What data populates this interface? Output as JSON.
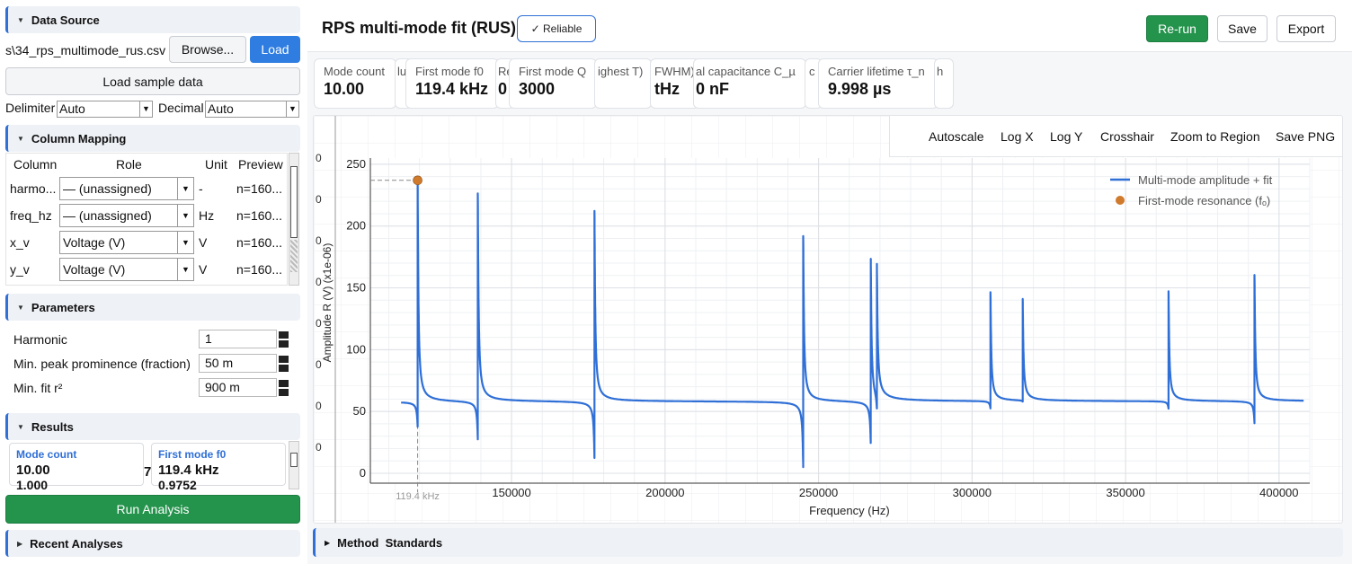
{
  "sidebar": {
    "data_source": {
      "header": "Data Source",
      "file_path": "s\\34_rps_multimode_rus.csv",
      "browse_label": "Browse...",
      "load_label": "Load",
      "load_sample_label": "Load sample data",
      "delimiter_label": "Delimiter",
      "delimiter_value": "Auto",
      "decimal_label": "Decimal",
      "decimal_value": "Auto"
    },
    "column_mapping": {
      "header": "Column Mapping",
      "columns": [
        "Column",
        "Role",
        "Unit",
        "Preview"
      ],
      "rows": [
        {
          "column": "harmo...",
          "role": "— (unassigned)",
          "unit": "-",
          "preview": "n=160..."
        },
        {
          "column": "freq_hz",
          "role": "— (unassigned)",
          "unit": "Hz",
          "preview": "n=160..."
        },
        {
          "column": "x_v",
          "role": "Voltage (V)",
          "unit": "V",
          "preview": "n=160..."
        },
        {
          "column": "y_v",
          "role": "Voltage (V)",
          "unit": "V",
          "preview": "n=160..."
        }
      ]
    },
    "parameters": {
      "header": "Parameters",
      "items": [
        {
          "label": "Harmonic",
          "value": "1"
        },
        {
          "label": "Min. peak prominence (fraction)",
          "value": "50 m"
        },
        {
          "label": "Min. fit r²",
          "value": "900 m"
        }
      ]
    },
    "results": {
      "header": "Results",
      "cards": [
        {
          "label": "Mode count",
          "value": "10.00",
          "below": "1.000"
        },
        {
          "label": "First mode f0",
          "value": "119.4 kHz",
          "below": "0.9752"
        }
      ],
      "peek": "7"
    },
    "run_label": "Run Analysis",
    "recent_header": "Recent Analyses"
  },
  "header": {
    "title": "RPS multi-mode fit (RUS)",
    "badge": "✓ Reliable",
    "rerun_label": "Re-run",
    "save_label": "Save",
    "export_label": "Export"
  },
  "metrics": [
    {
      "label": "Mode count",
      "value": "10.00"
    },
    {
      "label": "lu",
      "value": ""
    },
    {
      "label": "First mode f0",
      "value": "119.4 kHz"
    },
    {
      "label": "Re",
      "value": "0"
    },
    {
      "label": "First mode Q",
      "value": "3000"
    },
    {
      "label": "ighest T)",
      "value": ""
    },
    {
      "label": "FWHM)",
      "value": "tHz"
    },
    {
      "label": "al capacitance C_µ",
      "value": "0 nF"
    },
    {
      "label": "c",
      "value": ""
    },
    {
      "label": "Carrier lifetime τ_n",
      "value": "9.998 µs"
    },
    {
      "label": "h",
      "value": ""
    }
  ],
  "toolbar": [
    "Autoscale",
    "Log X",
    "Log Y",
    "Crosshair",
    "Zoom to Region",
    "Save PNG"
  ],
  "bg_ticks": [
    "0",
    "0",
    "0",
    "0",
    "0",
    "0",
    "0",
    "0"
  ],
  "method_standards": "Method  Standards",
  "chart_data": {
    "type": "line",
    "xlabel": "Frequency (Hz)",
    "ylabel": "Amplitude R (V) (x1e-06)",
    "xlim": [
      104000,
      410000
    ],
    "ylim": [
      -8,
      255
    ],
    "xticks": [
      150000,
      200000,
      250000,
      300000,
      350000,
      400000
    ],
    "xtick_labels": [
      "150000",
      "200000",
      "250000",
      "300000",
      "350000",
      "400000"
    ],
    "yticks": [
      0,
      50,
      100,
      150,
      200,
      250
    ],
    "ytick_labels": [
      "0",
      "50",
      "100",
      "150",
      "200",
      "250"
    ],
    "baseline": 58,
    "x_range": [
      114000,
      408000
    ],
    "modes": [
      {
        "f": 119400,
        "peak": 237,
        "dip": 38
      },
      {
        "f": 139000,
        "peak": 226,
        "dip": 27
      },
      {
        "f": 177000,
        "peak": 212,
        "dip": 12
      },
      {
        "f": 245000,
        "peak": 192,
        "dip": 5
      },
      {
        "f": 267000,
        "peak": 174,
        "dip": 25
      },
      {
        "f": 269000,
        "peak": 162,
        "dip": 45
      },
      {
        "f": 306000,
        "peak": 146,
        "dip": 52
      },
      {
        "f": 316500,
        "peak": 140,
        "dip": 57
      },
      {
        "f": 364000,
        "peak": 147,
        "dip": 52
      },
      {
        "f": 392000,
        "peak": 160,
        "dip": 40
      }
    ],
    "marker": {
      "x": 119400,
      "y": 237,
      "label": "119.4 kHz"
    },
    "legend": [
      {
        "name": "Multi-mode amplitude + fit",
        "color": "#2f6fd6",
        "kind": "line"
      },
      {
        "name": "First-mode resonance (fₒ)",
        "color": "#d07a2c",
        "kind": "dot"
      }
    ],
    "legend_position": "top-right",
    "grid": true
  }
}
